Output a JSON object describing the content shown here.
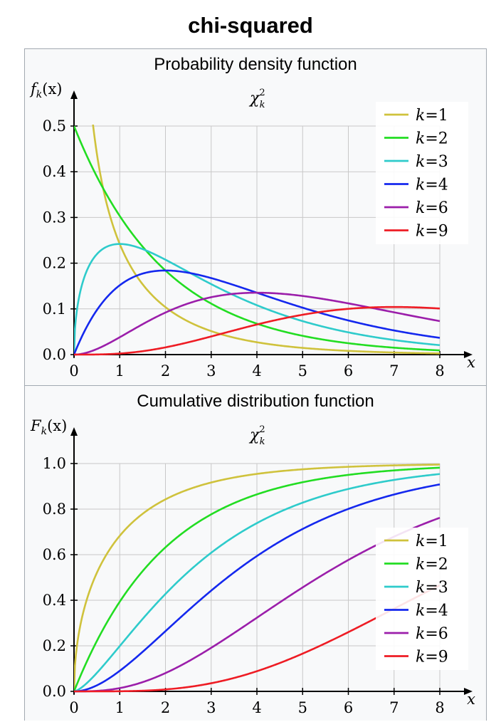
{
  "title": "chi-squared",
  "colors": {
    "k1": "#cfc23c",
    "k2": "#22dd22",
    "k3": "#2ecbcb",
    "k4": "#1428ee",
    "k6": "#9b1eaa",
    "k9": "#ee1c24",
    "grid": "#c8c8c8",
    "panel_bg": "#f8f9fa"
  },
  "chart_data": [
    {
      "type": "line",
      "title": "Probability density function",
      "subtitle": "χ²ₖ",
      "subtitle_main": "χ",
      "subtitle_sup": "2",
      "subtitle_sub": "k",
      "ylabel_main": "f",
      "ylabel_sub": "k",
      "ylabel_arg": "(x)",
      "xlabel": "x",
      "xlim": [
        0,
        8
      ],
      "ylim": [
        0,
        0.5
      ],
      "xticks": [
        "0",
        "1",
        "2",
        "3",
        "4",
        "5",
        "6",
        "7",
        "8"
      ],
      "yticks": [
        "0.0",
        "0.1",
        "0.2",
        "0.3",
        "0.4",
        "0.5"
      ],
      "grid": true,
      "legend_position": "top-right",
      "x": [
        0,
        0.5,
        1,
        1.5,
        2,
        2.5,
        3,
        3.5,
        4,
        4.5,
        5,
        5.5,
        6,
        6.5,
        7,
        7.5,
        8
      ],
      "series": [
        {
          "name": "k=1",
          "values": [
            null,
            0.4394,
            0.242,
            0.1542,
            0.1038,
            0.072,
            0.0514,
            0.0372,
            0.027,
            0.0198,
            0.0146,
            0.0108,
            0.008,
            0.0059,
            0.0044,
            0.0033,
            0.0025
          ]
        },
        {
          "name": "k=2",
          "values": [
            0.5,
            0.3894,
            0.3033,
            0.2362,
            0.1839,
            0.1433,
            0.1116,
            0.0869,
            0.0677,
            0.0527,
            0.041,
            0.032,
            0.0249,
            0.0194,
            0.0151,
            0.0118,
            0.0092
          ]
        },
        {
          "name": "k=3",
          "values": [
            0,
            0.2197,
            0.242,
            0.2313,
            0.2076,
            0.18,
            0.1542,
            0.1302,
            0.108,
            0.0891,
            0.0732,
            0.0597,
            0.0483,
            0.039,
            0.0312,
            0.0249,
            0.0198
          ]
        },
        {
          "name": "k=4",
          "values": [
            0,
            0.0974,
            0.1516,
            0.1771,
            0.1839,
            0.1791,
            0.1673,
            0.1521,
            0.1353,
            0.1186,
            0.1026,
            0.0879,
            0.0747,
            0.063,
            0.0528,
            0.0441,
            0.0366
          ]
        },
        {
          "name": "k=6",
          "values": [
            0,
            0.0122,
            0.0379,
            0.0664,
            0.092,
            0.1119,
            0.1255,
            0.1331,
            0.1353,
            0.1335,
            0.1283,
            0.1208,
            0.112,
            0.1024,
            0.0925,
            0.0827,
            0.0733
          ]
        },
        {
          "name": "k=9",
          "values": [
            0,
            0.0002,
            0.0018,
            0.0054,
            0.0109,
            0.0181,
            0.0264,
            0.0352,
            0.0438,
            0.0519,
            0.0589,
            0.0645,
            0.0688,
            0.0717,
            0.0731,
            0.0731,
            0.072
          ]
        }
      ]
    },
    {
      "type": "line",
      "title": "Cumulative distribution function",
      "subtitle": "χ²ₖ",
      "subtitle_main": "χ",
      "subtitle_sup": "2",
      "subtitle_sub": "k",
      "ylabel_main": "F",
      "ylabel_sub": "k",
      "ylabel_arg": "(x)",
      "xlabel": "x",
      "xlim": [
        0,
        8
      ],
      "ylim": [
        0,
        1
      ],
      "xticks": [
        "0",
        "1",
        "2",
        "3",
        "4",
        "5",
        "6",
        "7",
        "8"
      ],
      "yticks": [
        "0.0",
        "0.2",
        "0.4",
        "0.6",
        "0.8",
        "1.0"
      ],
      "grid": true,
      "legend_position": "bottom-right",
      "x": [
        0,
        0.5,
        1,
        1.5,
        2,
        2.5,
        3,
        3.5,
        4,
        4.5,
        5,
        5.5,
        6,
        6.5,
        7,
        7.5,
        8
      ],
      "series": [
        {
          "name": "k=1",
          "values": [
            0,
            0.5205,
            0.6827,
            0.7793,
            0.8427,
            0.8862,
            0.9167,
            0.9386,
            0.9545,
            0.9661,
            0.9747,
            0.981,
            0.9857,
            0.9892,
            0.9918,
            0.9938,
            0.9953
          ]
        },
        {
          "name": "k=2",
          "values": [
            0,
            0.2212,
            0.3935,
            0.5276,
            0.6321,
            0.7135,
            0.7769,
            0.8262,
            0.8647,
            0.8946,
            0.9179,
            0.9361,
            0.9502,
            0.9612,
            0.9698,
            0.9765,
            0.9817
          ]
        },
        {
          "name": "k=3",
          "values": [
            0,
            0.0811,
            0.1987,
            0.3177,
            0.4276,
            0.5247,
            0.6084,
            0.6792,
            0.7385,
            0.7877,
            0.8282,
            0.8614,
            0.8884,
            0.9103,
            0.9281,
            0.9424,
            0.954
          ]
        },
        {
          "name": "k=4",
          "values": [
            0,
            0.0265,
            0.0902,
            0.1734,
            0.2642,
            0.3554,
            0.4422,
            0.5221,
            0.594,
            0.6575,
            0.7127,
            0.7603,
            0.8009,
            0.8352,
            0.8641,
            0.8883,
            0.9084
          ]
        },
        {
          "name": "k=6",
          "values": [
            0,
            0.0022,
            0.0144,
            0.0405,
            0.0803,
            0.1315,
            0.1912,
            0.256,
            0.3233,
            0.3907,
            0.4562,
            0.5185,
            0.5768,
            0.6303,
            0.6792,
            0.7229,
            0.7619
          ]
        },
        {
          "name": "k=9",
          "values": [
            0,
            1e-05,
            0.0006,
            0.0031,
            0.0091,
            0.0203,
            0.0357,
            0.0574,
            0.0959,
            0.1282,
            0.1697,
            0.2118,
            0.26,
            0.3084,
            0.3622,
            0.4107,
            0.4659
          ]
        }
      ]
    }
  ]
}
